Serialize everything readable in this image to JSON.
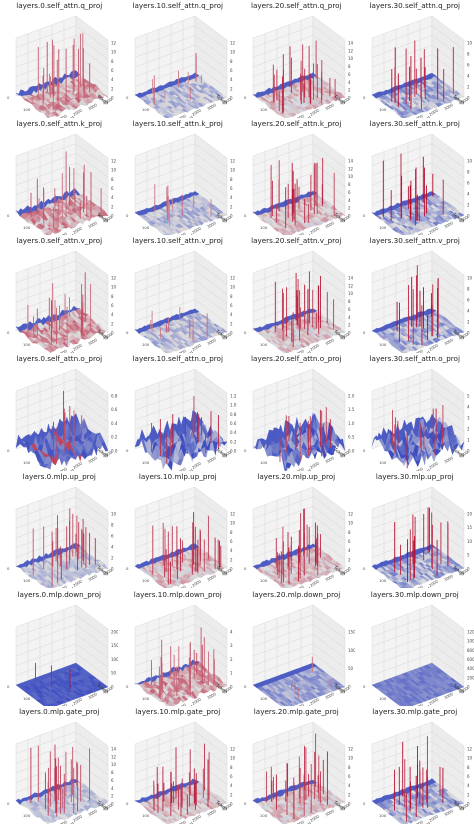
{
  "chart_data": {
    "type": "surface3d_grid",
    "rows": 7,
    "cols": 4,
    "axis_labels": {
      "x": "Channel",
      "y": "Token"
    },
    "x_ticks": [
      "0",
      "1000",
      "2000",
      "3000",
      "4000"
    ],
    "y_ticks": [
      "0",
      "100",
      "200"
    ],
    "colormap": "coolwarm",
    "panels": [
      {
        "title": "layers.0.self_attn.q_proj",
        "zmax": 12,
        "z_ticks": [
          "0",
          "2",
          "4",
          "6",
          "8",
          "10",
          "12"
        ],
        "style": "warm-dense"
      },
      {
        "title": "layers.10.self_attn.q_proj",
        "zmax": 12,
        "z_ticks": [
          "0",
          "2",
          "4",
          "6",
          "8",
          "10",
          "12"
        ],
        "style": "cool-flat"
      },
      {
        "title": "layers.20.self_attn.q_proj",
        "zmax": 14,
        "z_ticks": [
          "0",
          "2",
          "4",
          "6",
          "8",
          "10",
          "12",
          "14"
        ],
        "style": "warm-spiky"
      },
      {
        "title": "layers.30.self_attn.q_proj",
        "zmax": 10,
        "z_ticks": [
          "0",
          "2",
          "4",
          "6",
          "8",
          "10"
        ],
        "style": "mixed-spikes"
      },
      {
        "title": "layers.0.self_attn.k_proj",
        "zmax": 12,
        "z_ticks": [
          "0",
          "2",
          "4",
          "6",
          "8",
          "10",
          "12"
        ],
        "style": "warm-dense"
      },
      {
        "title": "layers.10.self_attn.k_proj",
        "zmax": 12,
        "z_ticks": [
          "0",
          "2",
          "4",
          "6",
          "8",
          "10",
          "12"
        ],
        "style": "cool-flat"
      },
      {
        "title": "layers.20.self_attn.k_proj",
        "zmax": 14,
        "z_ticks": [
          "0",
          "2",
          "4",
          "6",
          "8",
          "10",
          "12",
          "14"
        ],
        "style": "warm-spiky"
      },
      {
        "title": "layers.30.self_attn.k_proj",
        "zmax": 10,
        "z_ticks": [
          "0",
          "2",
          "4",
          "6",
          "8",
          "10"
        ],
        "style": "mixed-spikes"
      },
      {
        "title": "layers.0.self_attn.v_proj",
        "zmax": 12,
        "z_ticks": [
          "0",
          "2",
          "4",
          "6",
          "8",
          "10",
          "12"
        ],
        "style": "warm-dense"
      },
      {
        "title": "layers.10.self_attn.v_proj",
        "zmax": 12,
        "z_ticks": [
          "0",
          "2",
          "4",
          "6",
          "8",
          "10",
          "12"
        ],
        "style": "cool-flat"
      },
      {
        "title": "layers.20.self_attn.v_proj",
        "zmax": 14,
        "z_ticks": [
          "0",
          "2",
          "4",
          "6",
          "8",
          "10",
          "12",
          "14"
        ],
        "style": "warm-spiky"
      },
      {
        "title": "layers.30.self_attn.v_proj",
        "zmax": 10,
        "z_ticks": [
          "0",
          "2",
          "4",
          "6",
          "8",
          "10"
        ],
        "style": "mixed-spikes"
      },
      {
        "title": "layers.0.self_attn.o_proj",
        "zmax": 0.8,
        "z_ticks": [
          "0.0",
          "0.2",
          "0.4",
          "0.6",
          "0.8"
        ],
        "style": "cool-blocks"
      },
      {
        "title": "layers.10.self_attn.o_proj",
        "zmax": 1.2,
        "z_ticks": [
          "0.0",
          "0.2",
          "0.4",
          "0.6",
          "0.8",
          "1.0",
          "1.2"
        ],
        "style": "cool-rough"
      },
      {
        "title": "layers.20.self_attn.o_proj",
        "zmax": 2.0,
        "z_ticks": [
          "0.0",
          "0.5",
          "1.0",
          "1.5",
          "2.0"
        ],
        "style": "cool-rough"
      },
      {
        "title": "layers.30.self_attn.o_proj",
        "zmax": 5,
        "z_ticks": [
          "0",
          "1",
          "2",
          "3",
          "4",
          "5"
        ],
        "style": "cool-rough"
      },
      {
        "title": "layers.0.mlp.up_proj",
        "zmax": 10,
        "z_ticks": [
          "0",
          "2",
          "4",
          "6",
          "8",
          "10"
        ],
        "style": "light-spiky"
      },
      {
        "title": "layers.10.mlp.up_proj",
        "zmax": 12,
        "z_ticks": [
          "0",
          "2",
          "4",
          "6",
          "8",
          "10",
          "12"
        ],
        "style": "warm-spiky"
      },
      {
        "title": "layers.20.mlp.up_proj",
        "zmax": 12,
        "z_ticks": [
          "0",
          "2",
          "4",
          "6",
          "8",
          "10",
          "12"
        ],
        "style": "warm-spiky"
      },
      {
        "title": "layers.30.mlp.up_proj",
        "zmax": 20,
        "z_ticks": [
          "0",
          "5",
          "10",
          "15",
          "20"
        ],
        "style": "mixed-spikes"
      },
      {
        "title": "layers.0.mlp.down_proj",
        "zmax": 200,
        "z_ticks": [
          "0",
          "50",
          "100",
          "150",
          "200"
        ],
        "style": "deep-blue-flat"
      },
      {
        "title": "layers.10.mlp.down_proj",
        "zmax": 4,
        "z_ticks": [
          "0",
          "1",
          "2",
          "3",
          "4"
        ],
        "style": "warm-dense"
      },
      {
        "title": "layers.20.mlp.down_proj",
        "zmax": 150,
        "z_ticks": [
          "0",
          "50",
          "100",
          "150"
        ],
        "style": "pale-flat"
      },
      {
        "title": "layers.30.mlp.down_proj",
        "zmax": 1200,
        "z_ticks": [
          "0",
          "200",
          "400",
          "600",
          "800",
          "1000",
          "1200"
        ],
        "style": "blue-flat"
      },
      {
        "title": "layers.0.mlp.gate_proj",
        "zmax": 14,
        "z_ticks": [
          "0",
          "2",
          "4",
          "6",
          "8",
          "10",
          "12",
          "14"
        ],
        "style": "light-spiky"
      },
      {
        "title": "layers.10.mlp.gate_proj",
        "zmax": 12,
        "z_ticks": [
          "0",
          "2",
          "4",
          "6",
          "8",
          "10",
          "12"
        ],
        "style": "warm-spiky"
      },
      {
        "title": "layers.20.mlp.gate_proj",
        "zmax": 12,
        "z_ticks": [
          "0",
          "2",
          "4",
          "6",
          "8",
          "10",
          "12"
        ],
        "style": "warm-spiky"
      },
      {
        "title": "layers.30.mlp.gate_proj",
        "zmax": 12,
        "z_ticks": [
          "0",
          "2",
          "4",
          "6",
          "8",
          "10",
          "12"
        ],
        "style": "mixed-spikes"
      }
    ]
  }
}
